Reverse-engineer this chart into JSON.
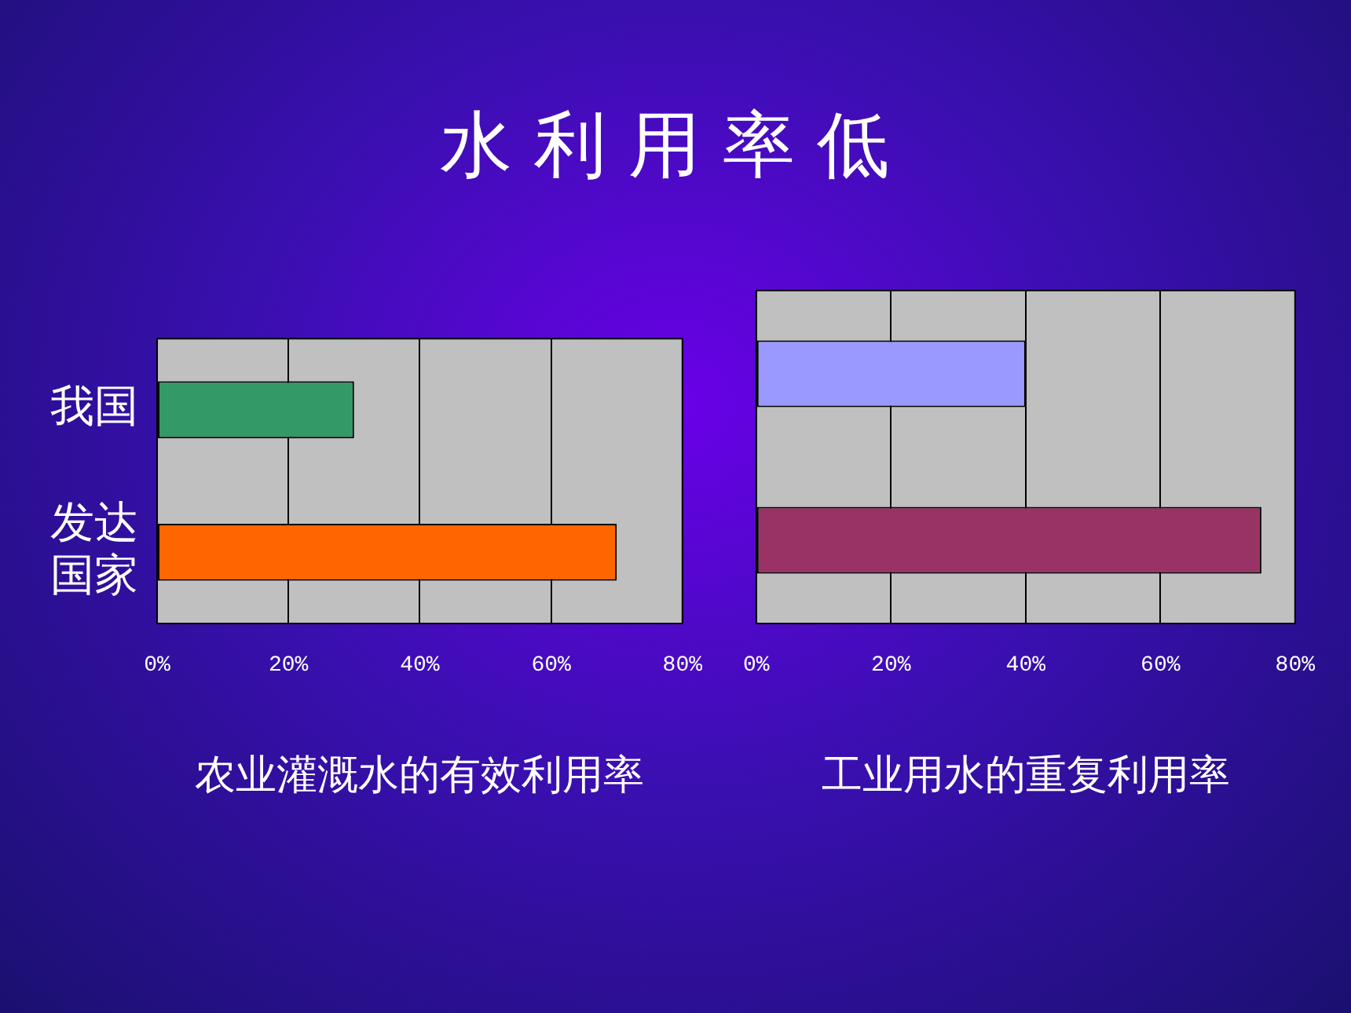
{
  "chart_data": [
    {
      "type": "bar",
      "title": "水利用率低",
      "orientation": "horizontal",
      "categories": [
        "我国",
        "发达国家"
      ],
      "colors": [
        "#339966",
        "#ff6600"
      ],
      "values": [
        30,
        70
      ],
      "xlim": [
        0,
        80
      ],
      "xticks": [
        {
          "value": 0,
          "label": "0%"
        },
        {
          "value": 20,
          "label": "20%"
        },
        {
          "value": 40,
          "label": "40%"
        },
        {
          "value": 60,
          "label": "60%"
        },
        {
          "value": 80,
          "label": "80%"
        }
      ],
      "xlabel": "农业灌溉水的有效利用率",
      "grid": "x",
      "legend": false
    },
    {
      "type": "bar",
      "orientation": "horizontal",
      "categories": [
        null,
        null
      ],
      "colors": [
        "#9999ff",
        "#993366"
      ],
      "values": [
        40,
        75
      ],
      "xlim": [
        0,
        80
      ],
      "xticks": [
        {
          "value": 0,
          "label": "0%"
        },
        {
          "value": 20,
          "label": "20%"
        },
        {
          "value": 40,
          "label": "40%"
        },
        {
          "value": 60,
          "label": "60%"
        },
        {
          "value": 80,
          "label": "80%"
        }
      ],
      "xlabel": "工业用水的重复利用率",
      "grid": "x",
      "legend": false,
      "tick_labels": "x"
    }
  ]
}
